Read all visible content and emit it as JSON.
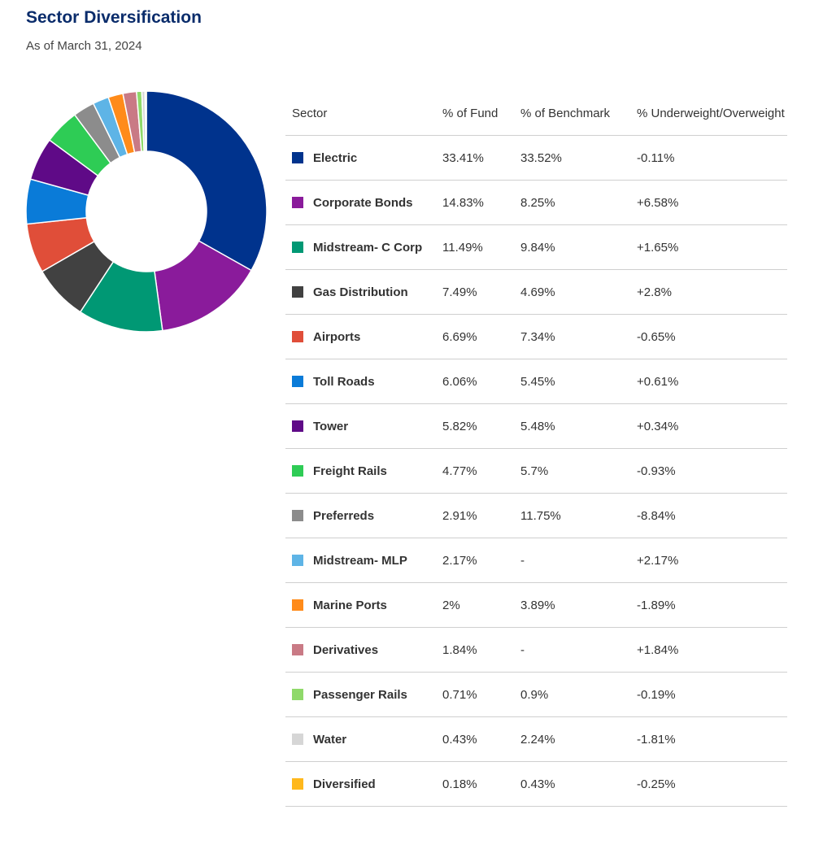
{
  "header": {
    "title": "Sector Diversification",
    "subtitle": "As of March 31, 2024"
  },
  "table": {
    "columns": [
      "Sector",
      "% of Fund",
      "% of Benchmark",
      "% Underweight/Overweight"
    ]
  },
  "chart_data": {
    "type": "pie",
    "title": "",
    "categories": [
      "Electric",
      "Corporate Bonds",
      "Midstream- C Corp",
      "Gas Distribution",
      "Airports",
      "Toll Roads",
      "Tower",
      "Freight Rails",
      "Preferreds",
      "Midstream- MLP",
      "Marine Ports",
      "Derivatives",
      "Passenger Rails",
      "Water",
      "Diversified"
    ],
    "series": [
      {
        "name": "% of Fund",
        "values": [
          33.41,
          14.83,
          11.49,
          7.49,
          6.69,
          6.06,
          5.82,
          4.77,
          2.91,
          2.17,
          2,
          1.84,
          0.71,
          0.43,
          0.18
        ]
      }
    ],
    "colors": [
      "#00338d",
      "#8a1b9b",
      "#009874",
      "#414141",
      "#e04e39",
      "#0a7bd8",
      "#5f0a87",
      "#2ecc55",
      "#8c8c8c",
      "#5eb4e6",
      "#ff8b1a",
      "#c97a85",
      "#8fd96a",
      "#d6d6d6",
      "#ffb81c"
    ],
    "rows": [
      {
        "sector": "Electric",
        "fund": "33.41%",
        "benchmark": "33.52%",
        "diff": "-0.11%"
      },
      {
        "sector": "Corporate Bonds",
        "fund": "14.83%",
        "benchmark": "8.25%",
        "diff": "+6.58%"
      },
      {
        "sector": "Midstream- C Corp",
        "fund": "11.49%",
        "benchmark": "9.84%",
        "diff": "+1.65%"
      },
      {
        "sector": "Gas Distribution",
        "fund": "7.49%",
        "benchmark": "4.69%",
        "diff": "+2.8%"
      },
      {
        "sector": "Airports",
        "fund": "6.69%",
        "benchmark": "7.34%",
        "diff": "-0.65%"
      },
      {
        "sector": "Toll Roads",
        "fund": "6.06%",
        "benchmark": "5.45%",
        "diff": "+0.61%"
      },
      {
        "sector": "Tower",
        "fund": "5.82%",
        "benchmark": "5.48%",
        "diff": "+0.34%"
      },
      {
        "sector": "Freight Rails",
        "fund": "4.77%",
        "benchmark": "5.7%",
        "diff": "-0.93%"
      },
      {
        "sector": "Preferreds",
        "fund": "2.91%",
        "benchmark": "11.75%",
        "diff": "-8.84%"
      },
      {
        "sector": "Midstream- MLP",
        "fund": "2.17%",
        "benchmark": "-",
        "diff": "+2.17%"
      },
      {
        "sector": "Marine Ports",
        "fund": "2%",
        "benchmark": "3.89%",
        "diff": "-1.89%"
      },
      {
        "sector": "Derivatives",
        "fund": "1.84%",
        "benchmark": "-",
        "diff": "+1.84%"
      },
      {
        "sector": "Passenger Rails",
        "fund": "0.71%",
        "benchmark": "0.9%",
        "diff": "-0.19%"
      },
      {
        "sector": "Water",
        "fund": "0.43%",
        "benchmark": "2.24%",
        "diff": "-1.81%"
      },
      {
        "sector": "Diversified",
        "fund": "0.18%",
        "benchmark": "0.43%",
        "diff": "-0.25%"
      }
    ]
  }
}
